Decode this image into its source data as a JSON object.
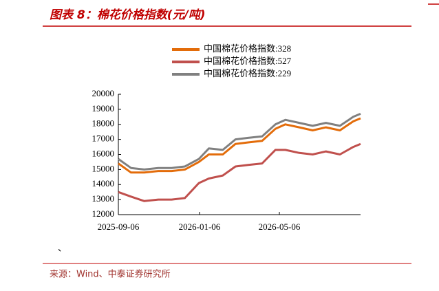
{
  "chart_data": {
    "type": "line",
    "title": "图表 8：棉花价格指数(元/吨)",
    "source": "来源：Wind、中泰证券研究所",
    "annotation": "、",
    "x": [
      "2025-09-06",
      "2025-09-25",
      "2025-10-15",
      "2025-11-05",
      "2025-11-25",
      "2025-12-15",
      "2026-01-05",
      "2026-01-20",
      "2026-02-10",
      "2026-03-01",
      "2026-03-20",
      "2026-04-10",
      "2026-04-30",
      "2026-05-15",
      "2026-06-05",
      "2026-06-25",
      "2026-07-15",
      "2026-08-05",
      "2026-08-25",
      "2026-09-05"
    ],
    "series": [
      {
        "name": "中国棉花价格指数:328",
        "color": "#e36c0a",
        "values": [
          15400,
          14800,
          14800,
          14900,
          14900,
          15000,
          15500,
          16000,
          16000,
          16700,
          16800,
          16900,
          17700,
          18000,
          17800,
          17600,
          17800,
          17600,
          18200,
          18400
        ]
      },
      {
        "name": "中国棉花价格指数:527",
        "color": "#c0504d",
        "values": [
          13500,
          13200,
          12900,
          13000,
          13000,
          13100,
          14100,
          14400,
          14600,
          15200,
          15300,
          15400,
          16300,
          16300,
          16100,
          16000,
          16200,
          16000,
          16500,
          16700
        ]
      },
      {
        "name": "中国棉花价格指数:229",
        "color": "#808080",
        "values": [
          15700,
          15100,
          15000,
          15100,
          15100,
          15200,
          15700,
          16400,
          16300,
          17000,
          17100,
          17200,
          18000,
          18300,
          18100,
          17900,
          18100,
          17900,
          18500,
          18700
        ]
      }
    ],
    "xlim": [
      "2025-09-06",
      "2026-09-05"
    ],
    "xticks": [
      "2025-09-06",
      "2026-01-06",
      "2026-05-06"
    ],
    "ylim": [
      12000,
      20000
    ],
    "yticks": [
      12000,
      13000,
      14000,
      15000,
      16000,
      17000,
      18000,
      19000,
      20000
    ],
    "legend": "top"
  }
}
